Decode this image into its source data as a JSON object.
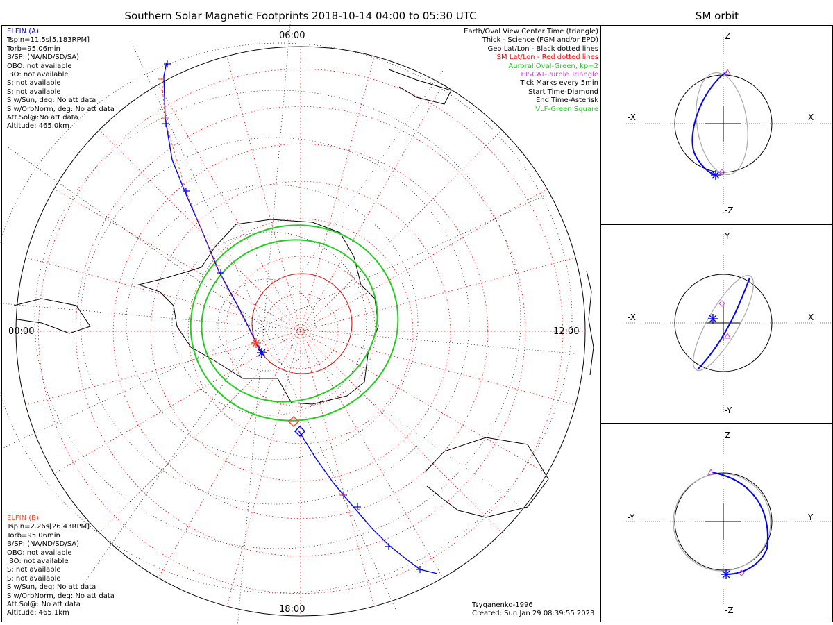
{
  "title": "Southern Solar Magnetic Footprints 2018-10-14 04:00 to 05:30 UTC",
  "sm_title": "SM orbit",
  "elfin_a": {
    "name": "ELFIN (A)",
    "lines": [
      "Tspin=11.5s[5.183RPM]",
      "Torb=95.06min",
      "B/SP: (NA/ND/SD/SA)",
      "OBO: not available",
      "IBO: not available",
      "S: not available",
      "S: not available",
      "S w/Sun, deg: No att data",
      "S w/OrbNorm, deg: No att data",
      "Att.Sol@:No att data",
      "Altitude: 465.0km"
    ]
  },
  "elfin_b": {
    "name": "ELFIN (B)",
    "lines": [
      "Tspin=2.26s[26.43RPM]",
      "Torb=95.06min",
      "B/SP: (NA/ND/SD/SA)",
      "OBO: not available",
      "IBO: not available",
      "S: not available",
      "S: not available",
      "S w/Sun, deg: No att data",
      "S w/OrbNorm, deg: No att data",
      "Att.Sol@: No att data",
      "Altitude: 465.1km"
    ]
  },
  "legend": [
    {
      "text": "Earth/Oval View Center Time (triangle)",
      "color": "#000000"
    },
    {
      "text": "Thick - Science (FGM and/or EPD)",
      "color": "#000000"
    },
    {
      "text": "Geo Lat/Lon - Black dotted lines",
      "color": "#000000"
    },
    {
      "text": "SM Lat/Lon - Red dotted lines",
      "color": "#ff0000"
    },
    {
      "text": "Auroral Oval-Green, kp=2",
      "color": "#22cc22"
    },
    {
      "text": "EISCAT-Purple Triangle",
      "color": "#cc44cc"
    },
    {
      "text": "Tick Marks every 5min",
      "color": "#000000"
    },
    {
      "text": "Start Time-Diamond",
      "color": "#000000"
    },
    {
      "text": "End Time-Asterisk",
      "color": "#000000"
    },
    {
      "text": "VLF-Green Square",
      "color": "#22cc22"
    }
  ],
  "time_labels": {
    "top": "06:00",
    "right": "12:00",
    "bottom": "18:00",
    "left": "00:00"
  },
  "footer": {
    "model": "Tsyganenko-1996",
    "created": "Created: Sun Jan 29 08:39:55 2023"
  },
  "colors": {
    "elfin_a": "#0000ff",
    "elfin_b": "#ff4422",
    "oval": "#22cc22",
    "sm_grid": "#ff0000",
    "geo_grid": "#000000",
    "orbit_other": "#aaaaaa"
  },
  "chart_data": [
    {
      "type": "polar-map",
      "title": "Southern Solar Magnetic Footprints 2018-10-14 04:00 to 05:30 UTC",
      "mlt_labels": [
        "06:00",
        "12:00",
        "18:00",
        "00:00"
      ],
      "series": [
        {
          "name": "ELFIN (A) footprint",
          "start": "diamond near 18 MLT",
          "end": "asterisk near pole",
          "ticks_every_min": 5
        },
        {
          "name": "ELFIN (B) footprint",
          "start": "diamond near 18 MLT",
          "end": "asterisk near pole",
          "ticks_every_min": 5
        }
      ],
      "auroral_oval_kp": 2
    },
    {
      "type": "orbit",
      "panel": "X-Z",
      "axes": [
        "-X",
        "X",
        "Z",
        "-Z"
      ]
    },
    {
      "type": "orbit",
      "panel": "X-Y",
      "axes": [
        "-X",
        "X",
        "Y",
        "-Y"
      ]
    },
    {
      "type": "orbit",
      "panel": "Y-Z",
      "axes": [
        "-Y",
        "Y",
        "Z",
        "-Z"
      ]
    }
  ],
  "orbit_panels": [
    {
      "left": "-X",
      "right": "X",
      "top": "Z",
      "bottom": "-Z"
    },
    {
      "left": "-X",
      "right": "X",
      "top": "Y",
      "bottom": "-Y"
    },
    {
      "left": "-Y",
      "right": "Y",
      "top": "Z",
      "bottom": "-Z"
    }
  ]
}
